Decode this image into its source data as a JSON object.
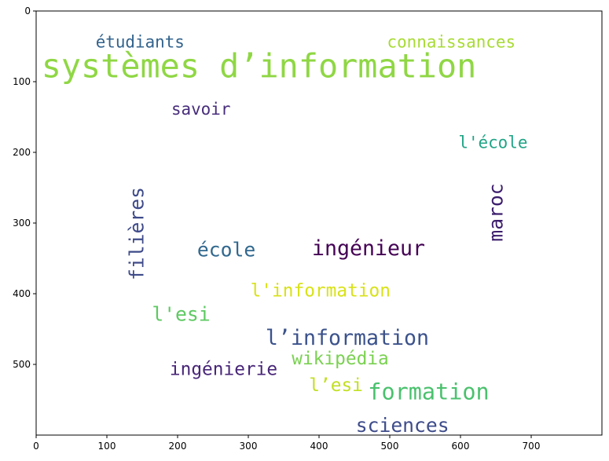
{
  "chart_data": {
    "type": "wordcloud",
    "title": "",
    "xlabel": "",
    "ylabel": "",
    "xlim": [
      0,
      800
    ],
    "ylim": [
      600,
      0
    ],
    "x_ticks": [
      0,
      100,
      200,
      300,
      400,
      500,
      600,
      700
    ],
    "y_ticks": [
      0,
      100,
      200,
      300,
      400,
      500
    ],
    "grid": false,
    "words": [
      {
        "text": "systèmes d’information",
        "x": 315,
        "y": 78,
        "size": 44,
        "rotate": 0,
        "color": "#8fd744"
      },
      {
        "text": "étudiants",
        "x": 147,
        "y": 44,
        "size": 22,
        "rotate": 0,
        "color": "#33638d"
      },
      {
        "text": "connaissances",
        "x": 587,
        "y": 44,
        "size": 22,
        "rotate": 0,
        "color": "#a8db34"
      },
      {
        "text": "savoir",
        "x": 233,
        "y": 139,
        "size": 22,
        "rotate": 0,
        "color": "#472d7b"
      },
      {
        "text": "l'école",
        "x": 646,
        "y": 186,
        "size": 22,
        "rotate": 0,
        "color": "#20a486"
      },
      {
        "text": "maroc",
        "x": 650,
        "y": 285,
        "size": 26,
        "rotate": -90,
        "color": "#3b1c6c"
      },
      {
        "text": "filières",
        "x": 142,
        "y": 315,
        "size": 26,
        "rotate": -90,
        "color": "#3e4a89"
      },
      {
        "text": "école",
        "x": 269,
        "y": 338,
        "size": 26,
        "rotate": 0,
        "color": "#31688e"
      },
      {
        "text": "ingénieur",
        "x": 470,
        "y": 336,
        "size": 28,
        "rotate": 0,
        "color": "#440154"
      },
      {
        "text": "l'information",
        "x": 402,
        "y": 396,
        "size": 24,
        "rotate": 0,
        "color": "#d8e219"
      },
      {
        "text": "l'esi",
        "x": 205,
        "y": 429,
        "size": 26,
        "rotate": 0,
        "color": "#5ec962"
      },
      {
        "text": "l’information",
        "x": 440,
        "y": 463,
        "size": 28,
        "rotate": 0,
        "color": "#3b528b"
      },
      {
        "text": "wikipédia",
        "x": 430,
        "y": 492,
        "size": 24,
        "rotate": 0,
        "color": "#7ad151"
      },
      {
        "text": "ingénierie",
        "x": 265,
        "y": 507,
        "size": 24,
        "rotate": 0,
        "color": "#482677"
      },
      {
        "text": "l’esi",
        "x": 424,
        "y": 530,
        "size": 24,
        "rotate": 0,
        "color": "#c2df23"
      },
      {
        "text": "formation",
        "x": 555,
        "y": 539,
        "size": 30,
        "rotate": 0,
        "color": "#4ac16d"
      },
      {
        "text": "sciences",
        "x": 518,
        "y": 586,
        "size": 26,
        "rotate": 0,
        "color": "#3e4c8a"
      }
    ]
  }
}
